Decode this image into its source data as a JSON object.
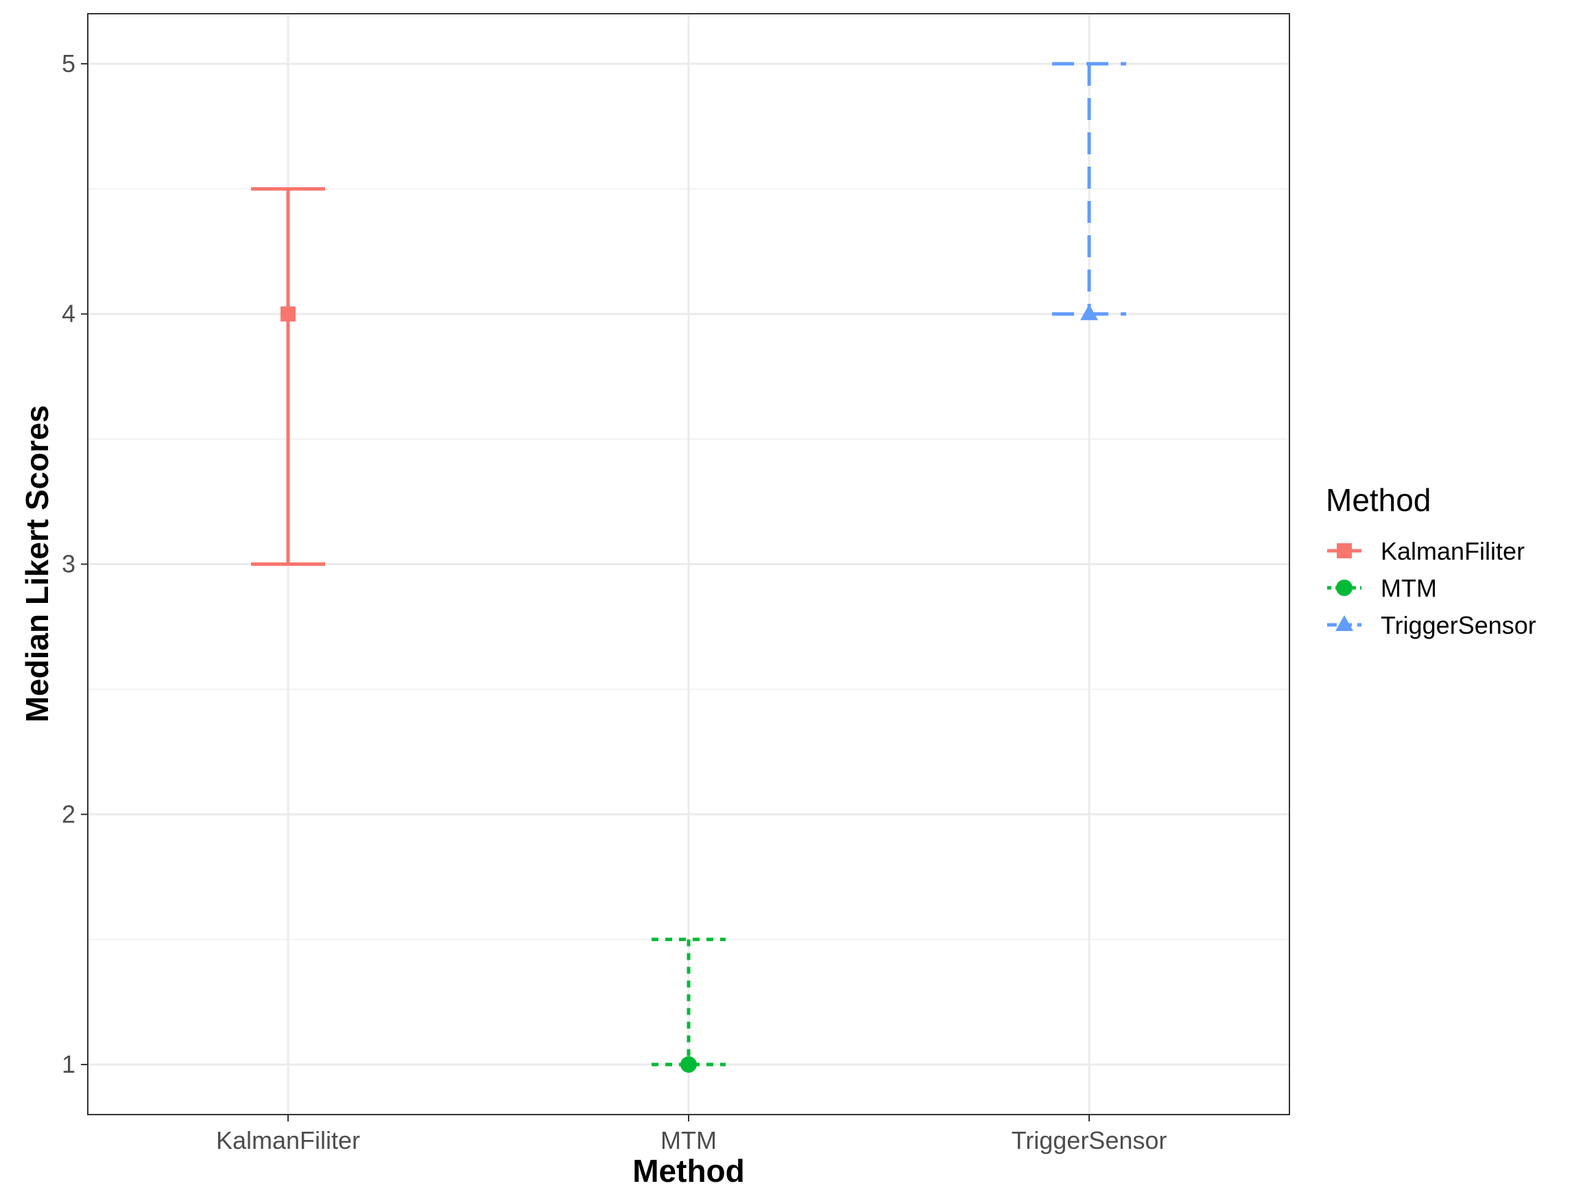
{
  "chart_data": {
    "type": "errorbar",
    "title": "",
    "xlabel": "Method",
    "ylabel": "Median Likert Scores",
    "ylim": [
      0.8,
      5.2
    ],
    "yticks": [
      1,
      2,
      3,
      4,
      5
    ],
    "ytick_labels": [
      "1",
      "2",
      "3",
      "4",
      "5"
    ],
    "categories": [
      "KalmanFiliter",
      "MTM",
      "TriggerSensor"
    ],
    "grid": true,
    "legend": {
      "title": "Method",
      "position": "right",
      "entries": [
        "KalmanFiliter",
        "MTM",
        "TriggerSensor"
      ]
    },
    "series": [
      {
        "name": "KalmanFiliter",
        "median": 4,
        "lower": 3,
        "upper": 4.5,
        "color": "#F8766D",
        "shape": "square",
        "linetype": "solid"
      },
      {
        "name": "MTM",
        "median": 1,
        "lower": 1,
        "upper": 1.5,
        "color": "#00BA38",
        "shape": "circle",
        "linetype": "dotted"
      },
      {
        "name": "TriggerSensor",
        "median": 4,
        "lower": 4,
        "upper": 5,
        "color": "#619CFF",
        "shape": "triangle",
        "linetype": "dashed"
      }
    ]
  }
}
